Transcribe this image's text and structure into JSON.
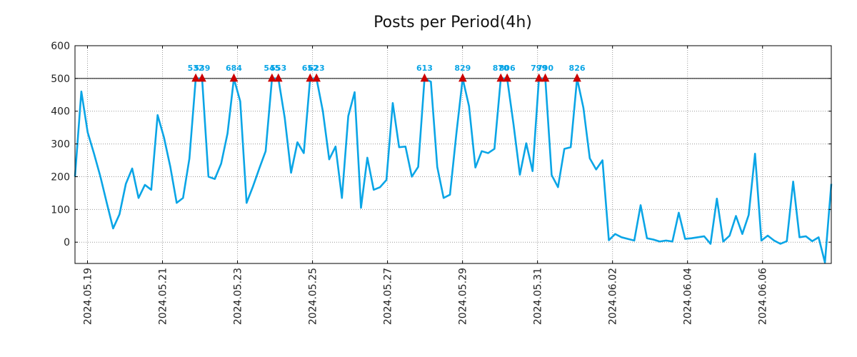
{
  "chart_data": {
    "type": "line",
    "title": "Posts per Period(4h)",
    "xlabel": "",
    "ylabel": "",
    "ylim": [
      -65,
      600
    ],
    "yticks": [
      0,
      100,
      200,
      300,
      400,
      500,
      600
    ],
    "x_start": "2024.05.18 16:00",
    "x_end": "2024.06.07 20:00",
    "xticks": [
      "2024.05.19",
      "2024.05.21",
      "2024.05.23",
      "2024.05.25",
      "2024.05.27",
      "2024.05.29",
      "2024.05.31",
      "2024.06.02",
      "2024.06.04",
      "2024.06.06"
    ],
    "cap_line": 500,
    "grid": true,
    "colors": {
      "line": "#0aa5e6",
      "marker": "#cc0000",
      "label": "#0aa5e6",
      "cap": "#000000",
      "grid": "#999999"
    },
    "series": [
      {
        "name": "Posts",
        "values": [
          200,
          460,
          335,
          270,
          200,
          120,
          42,
          85,
          178,
          225,
          135,
          175,
          160,
          388,
          320,
          230,
          120,
          135,
          255,
          532,
          539,
          200,
          193,
          240,
          332,
          684,
          430,
          120,
          170,
          225,
          278,
          545,
          553,
          380,
          212,
          305,
          272,
          652,
          623,
          400,
          253,
          292,
          135,
          385,
          458,
          105,
          258,
          160,
          168,
          190,
          425,
          290,
          292,
          200,
          230,
          613,
          490,
          230,
          135,
          145,
          330,
          829,
          415,
          228,
          278,
          272,
          285,
          870,
          806,
          360,
          206,
          302,
          217,
          799,
          790,
          205,
          168,
          285,
          290,
          826,
          410,
          256,
          222,
          250,
          6,
          25,
          15,
          10,
          5,
          113,
          12,
          8,
          2,
          5,
          2,
          90,
          10,
          12,
          15,
          18,
          -5,
          133,
          2,
          20,
          80,
          25,
          83,
          270,
          5,
          20,
          5,
          -5,
          3,
          185,
          15,
          18,
          3,
          15,
          -62,
          178
        ]
      }
    ],
    "annotations": [
      {
        "index": 19,
        "value": 532,
        "label": "532"
      },
      {
        "index": 20,
        "value": 539,
        "label": "539"
      },
      {
        "index": 25,
        "value": 684,
        "label": "684"
      },
      {
        "index": 31,
        "value": 545,
        "label": "545"
      },
      {
        "index": 32,
        "value": 553,
        "label": "553"
      },
      {
        "index": 37,
        "value": 652,
        "label": "652"
      },
      {
        "index": 38,
        "value": 623,
        "label": "623"
      },
      {
        "index": 55,
        "value": 613,
        "label": "613"
      },
      {
        "index": 61,
        "value": 829,
        "label": "829"
      },
      {
        "index": 67,
        "value": 870,
        "label": "870"
      },
      {
        "index": 68,
        "value": 806,
        "label": "806"
      },
      {
        "index": 73,
        "value": 799,
        "label": "799"
      },
      {
        "index": 74,
        "value": 790,
        "label": "790"
      },
      {
        "index": 79,
        "value": 826,
        "label": "826"
      }
    ]
  }
}
